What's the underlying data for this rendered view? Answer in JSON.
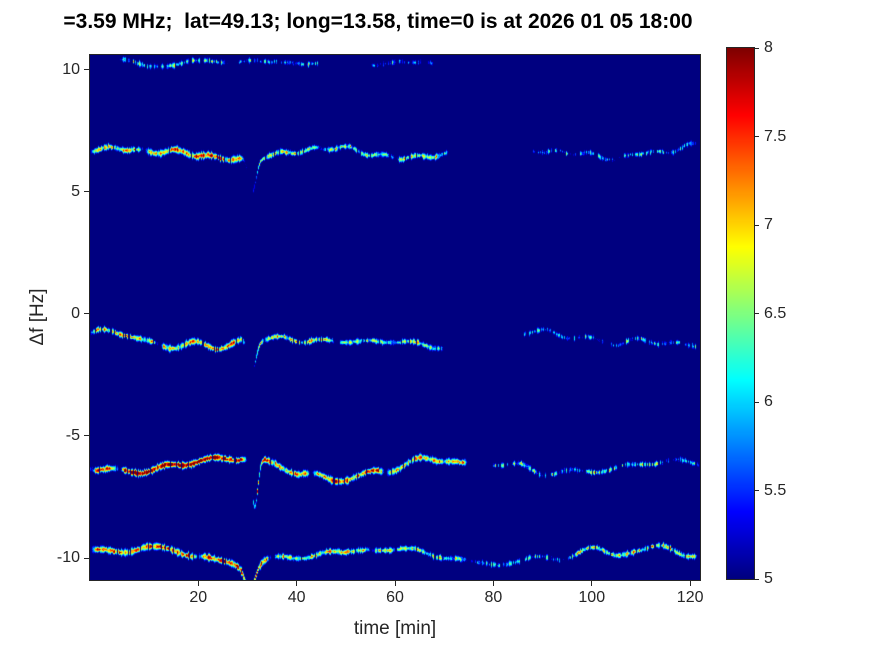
{
  "figure": {
    "background": "#ffffff",
    "axis_color": "#262626",
    "title_color": "#000000"
  },
  "chart_data": {
    "type": "heatmap",
    "title": "=3.59 MHz;  lat=49.13; long=13.58, time=0 is at 2026 01 05 18:00",
    "xlabel": "time [min]",
    "ylabel": "Δf [Hz]",
    "x_range": [
      -2,
      122
    ],
    "y_range": [
      -10.9,
      10.6
    ],
    "x_ticks": [
      20,
      40,
      60,
      80,
      100,
      120
    ],
    "y_ticks": [
      10,
      5,
      0,
      -5,
      -10
    ],
    "grid": false,
    "colormap": "jet",
    "caxis": [
      5,
      8
    ],
    "plot_background_color": "#000080",
    "colorbar": {
      "min": 5,
      "max": 8,
      "ticks": [
        8,
        7.5,
        7,
        6.5,
        6,
        5.5,
        5
      ]
    },
    "traces": [
      {
        "name": "band near +10.3 Hz (faint, intermittent)",
        "center": 10.3,
        "seed": 11,
        "segments": [
          [
            4,
            26,
            5.85
          ],
          [
            28,
            46,
            5.7
          ],
          [
            55,
            68,
            5.5
          ]
        ],
        "wander": {
          "amp1": 0.08,
          "freq1": 0.4,
          "phase1": 0.0,
          "amp2": 0.0,
          "freq2": 0.0,
          "phase2": 0.0
        },
        "dips": []
      },
      {
        "name": "band near +6.6 Hz",
        "center": 6.62,
        "seed": 22,
        "segments": [
          [
            -2,
            9,
            6.75
          ],
          [
            9,
            30,
            6.95
          ],
          [
            31,
            45,
            6.45
          ],
          [
            45,
            60,
            6.3
          ],
          [
            60,
            71,
            6.45
          ],
          [
            88,
            105,
            5.6
          ],
          [
            105,
            122,
            5.75
          ]
        ],
        "wander": {
          "amp1": 0.2,
          "freq1": 0.16,
          "phase1": 0.8,
          "amp2": 0.07,
          "freq2": 0.9,
          "phase2": 0.0
        },
        "dips": [
          {
            "t": 31,
            "depth": 1.4,
            "width": 1.1
          }
        ]
      },
      {
        "name": "band near -1.0 Hz",
        "center": -1.05,
        "seed": 33,
        "segments": [
          [
            -2,
            12,
            6.7
          ],
          [
            12,
            30,
            6.9
          ],
          [
            31,
            48,
            6.35
          ],
          [
            48,
            70,
            6.3
          ],
          [
            85,
            103,
            5.55
          ],
          [
            103,
            122,
            5.7
          ]
        ],
        "wander": {
          "amp1": 0.25,
          "freq1": 0.13,
          "phase1": 2.1,
          "amp2": 0.08,
          "freq2": 0.7,
          "phase2": 1.0
        },
        "dips": [
          {
            "t": 31,
            "depth": 1.2,
            "width": 1.1
          },
          {
            "t": 47,
            "depth": 0.45,
            "width": 7
          }
        ]
      },
      {
        "name": "band near -6.2 Hz (strongest, reaches 8)",
        "center": -6.2,
        "seed": 44,
        "segments": [
          [
            -2,
            4,
            7.1
          ],
          [
            4,
            30,
            7.9
          ],
          [
            31,
            43,
            7.0
          ],
          [
            43,
            58,
            7.25
          ],
          [
            58,
            75,
            6.85
          ],
          [
            79,
            98,
            5.8
          ],
          [
            98,
            115,
            6.15
          ],
          [
            115,
            122,
            5.8
          ]
        ],
        "wander": {
          "amp1": 0.22,
          "freq1": 0.14,
          "phase1": 4.0,
          "amp2": 0.09,
          "freq2": 0.6,
          "phase2": 0.5
        },
        "dips": [
          {
            "t": 31.5,
            "depth": 2.0,
            "width": 0.9
          },
          {
            "t": 49,
            "depth": 0.5,
            "width": 8
          }
        ]
      },
      {
        "name": "band near -9.9 Hz",
        "center": -9.9,
        "seed": 55,
        "segments": [
          [
            -2,
            20,
            7.25
          ],
          [
            20,
            35,
            7.35
          ],
          [
            35,
            55,
            6.6
          ],
          [
            55,
            75,
            6.3
          ],
          [
            75,
            95,
            5.65
          ],
          [
            95,
            122,
            6.35
          ]
        ],
        "wander": {
          "amp1": 0.28,
          "freq1": 0.12,
          "phase1": 1.0,
          "amp2": 0.1,
          "freq2": 0.5,
          "phase2": 2.0
        },
        "dips": [
          {
            "t": 30.5,
            "depth": 0.9,
            "width": 1.4
          }
        ]
      }
    ]
  }
}
